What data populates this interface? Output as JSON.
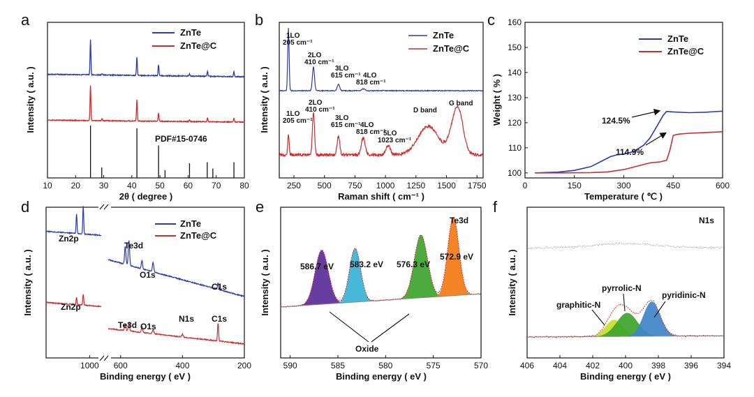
{
  "colors": {
    "blue": "#2b3aa8",
    "red": "#d02a2a",
    "purple": "#5b2d9a",
    "cyan": "#38b3d6",
    "green": "#3ca52c",
    "orange": "#f27a16",
    "yellowgreen": "#c4e02a",
    "steelblue": "#3f84c8"
  },
  "chart_data": [
    {
      "id": "a",
      "type": "line",
      "letter": "a",
      "xlabel": "2θ ( degree )",
      "ylabel": "Intensity ( a.u. )",
      "xlim": [
        10,
        80
      ],
      "xticks": [
        "10",
        "20",
        "30",
        "40",
        "50",
        "60",
        "70",
        "80"
      ],
      "series": [
        {
          "name": "ZnTe",
          "color": "#2b3aa8",
          "baseline": 0.22,
          "peaks": [
            [
              25.3,
              0.5
            ],
            [
              29.4,
              0.02
            ],
            [
              41.8,
              0.26
            ],
            [
              49.5,
              0.16
            ],
            [
              60.5,
              0.03
            ],
            [
              66.9,
              0.07
            ],
            [
              76.3,
              0.07
            ]
          ]
        },
        {
          "name": "ZnTe@C",
          "color": "#d02a2a",
          "baseline": 0.55,
          "peaks": [
            [
              25.3,
              0.5
            ],
            [
              29.4,
              0.03
            ],
            [
              41.8,
              0.3
            ],
            [
              49.5,
              0.12
            ],
            [
              60.5,
              0.03
            ],
            [
              66.9,
              0.05
            ],
            [
              76.3,
              0.05
            ]
          ]
        }
      ],
      "reference": {
        "name": "PDF#15-0746",
        "lines": [
          [
            25.3,
            1.0
          ],
          [
            29.3,
            0.2
          ],
          [
            41.8,
            0.95
          ],
          [
            49.5,
            0.62
          ],
          [
            51.8,
            0.15
          ],
          [
            60.5,
            0.28
          ],
          [
            66.8,
            0.3
          ],
          [
            68.8,
            0.18
          ],
          [
            76.3,
            0.3
          ]
        ]
      }
    },
    {
      "id": "b",
      "type": "line",
      "letter": "b",
      "xlabel": "Raman shift ( cm⁻¹ )",
      "ylabel": "Intensity ( a.u. )",
      "xlim": [
        130,
        1800
      ],
      "xticks": [
        "250",
        "500",
        "750",
        "1000",
        "1250",
        "1500",
        "1750"
      ],
      "xtick_values": [
        250,
        500,
        750,
        1000,
        1250,
        1500,
        1750
      ],
      "series": [
        {
          "name": "ZnTe",
          "color": "#2b3aa8",
          "peaks": [
            [
              205,
              1.0,
              8
            ],
            [
              410,
              0.38,
              12
            ],
            [
              615,
              0.1,
              14
            ],
            [
              818,
              0.03,
              18
            ]
          ]
        },
        {
          "name": "ZnTe@C",
          "color": "#d02a2a",
          "peaks": [
            [
              205,
              0.45,
              8
            ],
            [
              410,
              0.9,
              12
            ],
            [
              615,
              0.4,
              15
            ],
            [
              818,
              0.36,
              22
            ],
            [
              1023,
              0.2,
              25
            ],
            [
              1350,
              0.6,
              120
            ],
            [
              1590,
              1.0,
              70
            ]
          ]
        }
      ],
      "annotations": [
        {
          "lines": [
            "1LO",
            "205 cm⁻¹"
          ],
          "series": "ZnTe"
        },
        {
          "lines": [
            "2LO",
            "410 cm⁻¹"
          ],
          "series": "ZnTe"
        },
        {
          "lines": [
            "3LO",
            "615 cm⁻¹"
          ],
          "series": "ZnTe"
        },
        {
          "lines": [
            "4LO",
            "818 cm⁻¹"
          ],
          "series": "ZnTe"
        },
        {
          "lines": [
            "1LO",
            "205 cm⁻¹"
          ],
          "series": "ZnTe@C"
        },
        {
          "lines": [
            "2LO",
            "410 cm⁻¹"
          ],
          "series": "ZnTe@C"
        },
        {
          "lines": [
            "3LO",
            "615 cm⁻¹"
          ],
          "series": "ZnTe@C"
        },
        {
          "lines": [
            "4LO",
            "818 cm⁻¹"
          ],
          "series": "ZnTe@C"
        },
        {
          "lines": [
            "5LO",
            "1023 cm⁻¹"
          ],
          "series": "ZnTe@C"
        },
        {
          "lines": [
            "D band"
          ],
          "series": "ZnTe@C"
        },
        {
          "lines": [
            "G band"
          ],
          "series": "ZnTe@C"
        }
      ]
    },
    {
      "id": "c",
      "type": "line",
      "letter": "c",
      "xlabel": "Temperature ( ℃ )",
      "ylabel": "Weight ( % )",
      "xlim": [
        0,
        600
      ],
      "ylim": [
        98,
        160
      ],
      "xticks": [
        "0",
        "150",
        "300",
        "450",
        "600"
      ],
      "xtick_values": [
        0,
        150,
        300,
        450,
        600
      ],
      "yticks": [
        "100",
        "110",
        "120",
        "130",
        "140",
        "150",
        "160"
      ],
      "ytick_values": [
        100,
        110,
        120,
        130,
        140,
        150,
        160
      ],
      "series": [
        {
          "name": "ZnTe",
          "color": "#2b3aa8",
          "x": [
            30,
            100,
            150,
            200,
            230,
            260,
            280,
            300,
            330,
            360,
            380,
            400,
            420,
            430,
            450,
            500,
            550,
            600
          ],
          "y": [
            100,
            100.3,
            101,
            102.5,
            104.5,
            106.5,
            107.2,
            107.5,
            108.5,
            111,
            114,
            118.5,
            123,
            124.5,
            124.3,
            124,
            124.2,
            124.6
          ]
        },
        {
          "name": "ZnTe@C",
          "color": "#d02a2a",
          "x": [
            30,
            100,
            200,
            250,
            300,
            350,
            380,
            410,
            430,
            440,
            450,
            460,
            470,
            500,
            550,
            600
          ],
          "y": [
            100,
            100,
            100.1,
            100.4,
            101.3,
            103,
            104,
            104.4,
            105,
            109,
            114.9,
            115.3,
            115.5,
            115.8,
            116.1,
            116.4
          ]
        }
      ],
      "annotations": [
        {
          "text": "124.5%",
          "at": [
            430,
            124.5
          ]
        },
        {
          "text": "114.9%",
          "at": [
            450,
            114.9
          ]
        }
      ]
    },
    {
      "id": "d",
      "type": "line",
      "letter": "d",
      "xlabel": "Binding energy ( eV )",
      "ylabel": "Intensity ( a.u. )",
      "xticks": [
        "1000",
        "800",
        "600",
        "400",
        "200"
      ],
      "series": [
        {
          "name": "ZnTe",
          "color": "#2b3aa8"
        },
        {
          "name": "ZnTe@C",
          "color": "#d02a2a"
        }
      ],
      "annotations": [
        "Zn2p",
        "Te3d",
        "O1s",
        "C1s",
        "Zn2p",
        "Te3d",
        "O1s",
        "N1s",
        "C1s"
      ]
    },
    {
      "id": "e",
      "type": "area",
      "letter": "e",
      "title": "Te3d",
      "xlabel": "Binding energy ( eV )",
      "ylabel": "Intensity ( a.u. )",
      "xlim": [
        591,
        570
      ],
      "xticks": [
        "590",
        "585",
        "580",
        "575",
        "570"
      ],
      "xtick_values": [
        590,
        585,
        580,
        575,
        570
      ],
      "components": [
        {
          "center": 586.7,
          "label": "586.7 eV",
          "amplitude": 0.62,
          "width": 0.9,
          "color": "#5b2d9a"
        },
        {
          "center": 583.2,
          "label": "583.2 eV",
          "amplitude": 0.62,
          "width": 0.75,
          "color": "#38b3d6"
        },
        {
          "center": 576.3,
          "label": "576.3 eV",
          "amplitude": 0.72,
          "width": 0.9,
          "color": "#3ca52c"
        },
        {
          "center": 572.9,
          "label": "572.9 eV",
          "amplitude": 0.9,
          "width": 0.75,
          "color": "#f27a16"
        }
      ],
      "annotations": [
        "Oxide"
      ]
    },
    {
      "id": "f",
      "type": "area",
      "letter": "f",
      "title": "N1s",
      "xlabel": "Binding energy ( eV )",
      "ylabel": "Intensity ( a.u. )",
      "xlim": [
        406,
        394
      ],
      "xticks": [
        "406",
        "404",
        "402",
        "400",
        "398",
        "396",
        "394"
      ],
      "xtick_values": [
        406,
        404,
        402,
        400,
        398,
        396,
        394
      ],
      "components": [
        {
          "center": 400.7,
          "label": "graphitic-N",
          "amplitude": 0.3,
          "width": 0.6,
          "color": "#c4e02a"
        },
        {
          "center": 399.9,
          "label": "pyrrolic-N",
          "amplitude": 0.42,
          "width": 0.75,
          "color": "#3ca52c"
        },
        {
          "center": 398.4,
          "label": "pyridinic-N",
          "amplitude": 0.62,
          "width": 0.6,
          "color": "#3f84c8"
        }
      ]
    }
  ]
}
